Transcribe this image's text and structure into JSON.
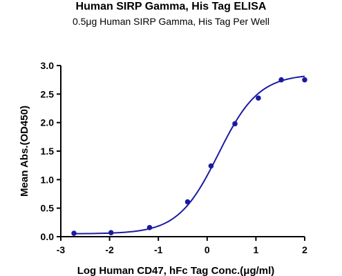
{
  "chart_data": {
    "type": "line",
    "title": "Human SIRP Gamma, His Tag ELISA",
    "subtitle": "0.5μg Human SIRP Gamma, His Tag Per Well",
    "xlabel": "Log Human CD47, hFc Tag Conc.(μg/ml)",
    "ylabel": "Mean Abs.(OD450)",
    "xlim": [
      -3,
      2
    ],
    "ylim": [
      0,
      3.0
    ],
    "xticks": [
      "-3",
      "-2",
      "-1",
      "0",
      "1",
      "2"
    ],
    "yticks": [
      "0.0",
      "0.5",
      "1.0",
      "1.5",
      "2.0",
      "2.5",
      "3.0"
    ],
    "grid": false,
    "series": [
      {
        "x": [
          -2.73,
          -1.97,
          -1.18,
          -0.4,
          0.08,
          0.57,
          1.05,
          1.52,
          2.0
        ],
        "y": [
          0.06,
          0.07,
          0.16,
          0.61,
          1.24,
          1.98,
          2.43,
          2.75,
          2.75
        ],
        "color": "#1a1aa0"
      }
    ],
    "fit_curve": {
      "model": "4PL",
      "bottom": 0.05,
      "top": 2.85,
      "log_ec50": 0.23,
      "hill": 1.05
    }
  }
}
